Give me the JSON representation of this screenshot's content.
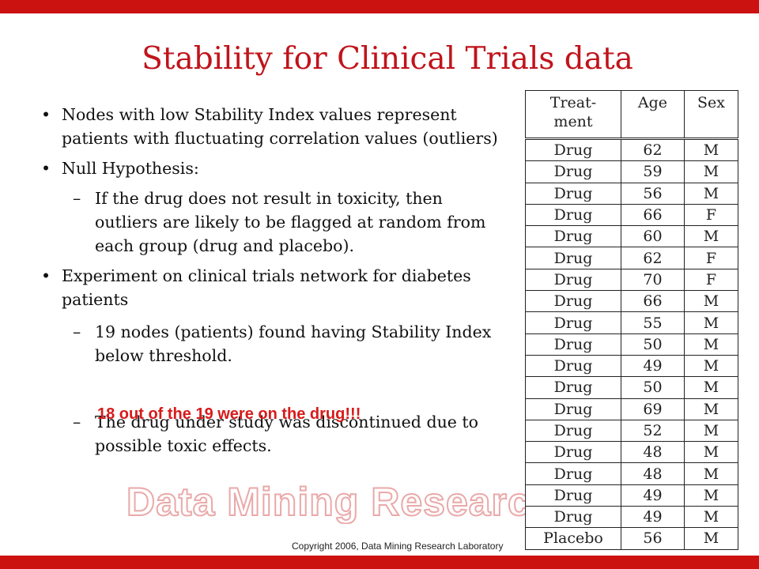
{
  "title": "Stability for Clinical Trials data",
  "bullets": {
    "b1": "Nodes with low Stability Index values represent patients with fluctuating correlation values (outliers)",
    "b2": "Null Hypothesis:",
    "b2_sub": "If the drug does not result in toxicity, then outliers are likely to be flagged at random from each group (drug and placebo).",
    "b3": "Experiment on clinical trials network for diabetes patients",
    "b3_sub1": "19 nodes (patients) found having Stability Index below threshold.",
    "highlight": "18 out of the 19 were on the drug!!!",
    "b3_sub2": "The drug under study was discontinued due to possible toxic effects.",
    "dash": "–"
  },
  "table": {
    "headers": [
      "Treat-\nment",
      "Age",
      "Sex"
    ],
    "rows": [
      [
        "Drug",
        "62",
        "M"
      ],
      [
        "Drug",
        "59",
        "M"
      ],
      [
        "Drug",
        "56",
        "M"
      ],
      [
        "Drug",
        "66",
        "F"
      ],
      [
        "Drug",
        "60",
        "M"
      ],
      [
        "Drug",
        "62",
        "F"
      ],
      [
        "Drug",
        "70",
        "F"
      ],
      [
        "Drug",
        "66",
        "M"
      ],
      [
        "Drug",
        "55",
        "M"
      ],
      [
        "Drug",
        "50",
        "M"
      ],
      [
        "Drug",
        "49",
        "M"
      ],
      [
        "Drug",
        "50",
        "M"
      ],
      [
        "Drug",
        "69",
        "M"
      ],
      [
        "Drug",
        "52",
        "M"
      ],
      [
        "Drug",
        "48",
        "M"
      ],
      [
        "Drug",
        "48",
        "M"
      ],
      [
        "Drug",
        "49",
        "M"
      ],
      [
        "Drug",
        "49",
        "M"
      ],
      [
        "Placebo",
        "56",
        "M"
      ]
    ]
  },
  "watermark": "Data Mining Research",
  "copyright": "Copyright 2006, Data Mining Research Laboratory",
  "colors": {
    "accent": "#cc1111",
    "title": "#c0141b",
    "highlight": "#d81a1a"
  }
}
